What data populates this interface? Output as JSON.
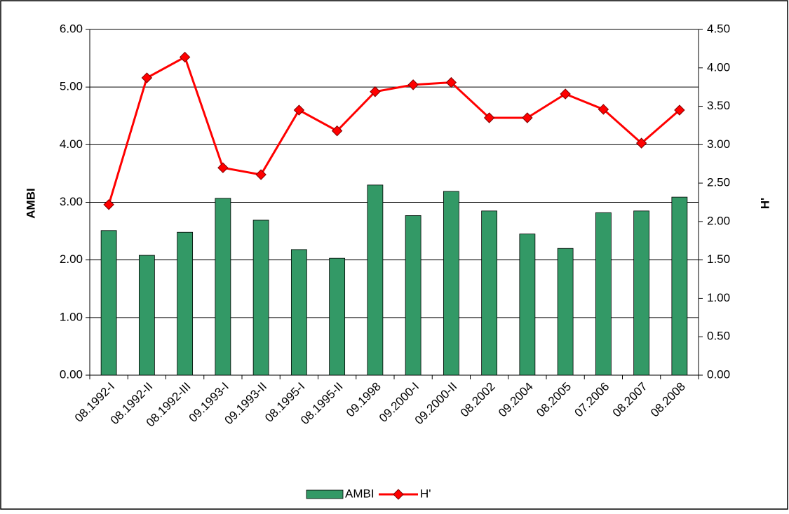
{
  "chart_data": {
    "type": "bar-line",
    "categories": [
      "08.1992-I",
      "08.1992-II",
      "08.1992-III",
      "09.1993-I",
      "09.1993-II",
      "08.1995-I",
      "08.1995-II",
      "09.1998",
      "09.2000-I",
      "09.2000-II",
      "08.2002",
      "09.2004",
      "08.2005",
      "07.2006",
      "08.2007",
      "08.2008"
    ],
    "series": [
      {
        "name": "AMBI",
        "type": "bar",
        "color": "#339966",
        "values": [
          2.51,
          2.08,
          2.48,
          3.07,
          2.69,
          2.18,
          2.03,
          3.3,
          2.77,
          3.19,
          2.85,
          2.45,
          2.2,
          2.82,
          2.85,
          3.09
        ]
      },
      {
        "name": "H'",
        "type": "line",
        "axis": "y2",
        "color": "#ff0000",
        "values": [
          2.22,
          3.87,
          4.14,
          2.7,
          2.61,
          3.45,
          3.18,
          3.69,
          3.78,
          3.81,
          3.35,
          3.35,
          3.66,
          3.46,
          3.02,
          3.45
        ]
      }
    ],
    "ylabel": "AMBI",
    "y2label": "H'",
    "ylim": [
      0,
      6
    ],
    "yticks": [
      {
        "value": 0,
        "label": "0.00"
      },
      {
        "value": 1,
        "label": "1.00"
      },
      {
        "value": 2,
        "label": "2.00"
      },
      {
        "value": 3,
        "label": "3.00"
      },
      {
        "value": 4,
        "label": "4.00"
      },
      {
        "value": 5,
        "label": "5.00"
      },
      {
        "value": 6,
        "label": "6.00"
      }
    ],
    "y2lim": [
      0,
      4.5
    ],
    "y2ticks": [
      {
        "value": 0,
        "label": "0.00"
      },
      {
        "value": 0.5,
        "label": "0.50"
      },
      {
        "value": 1,
        "label": "1.00"
      },
      {
        "value": 1.5,
        "label": "1.50"
      },
      {
        "value": 2,
        "label": "2.00"
      },
      {
        "value": 2.5,
        "label": "2.50"
      },
      {
        "value": 3,
        "label": "3.00"
      },
      {
        "value": 3.5,
        "label": "3.50"
      },
      {
        "value": 4,
        "label": "4.00"
      },
      {
        "value": 4.5,
        "label": "4.50"
      }
    ],
    "grid": true,
    "legend": "bottom"
  }
}
